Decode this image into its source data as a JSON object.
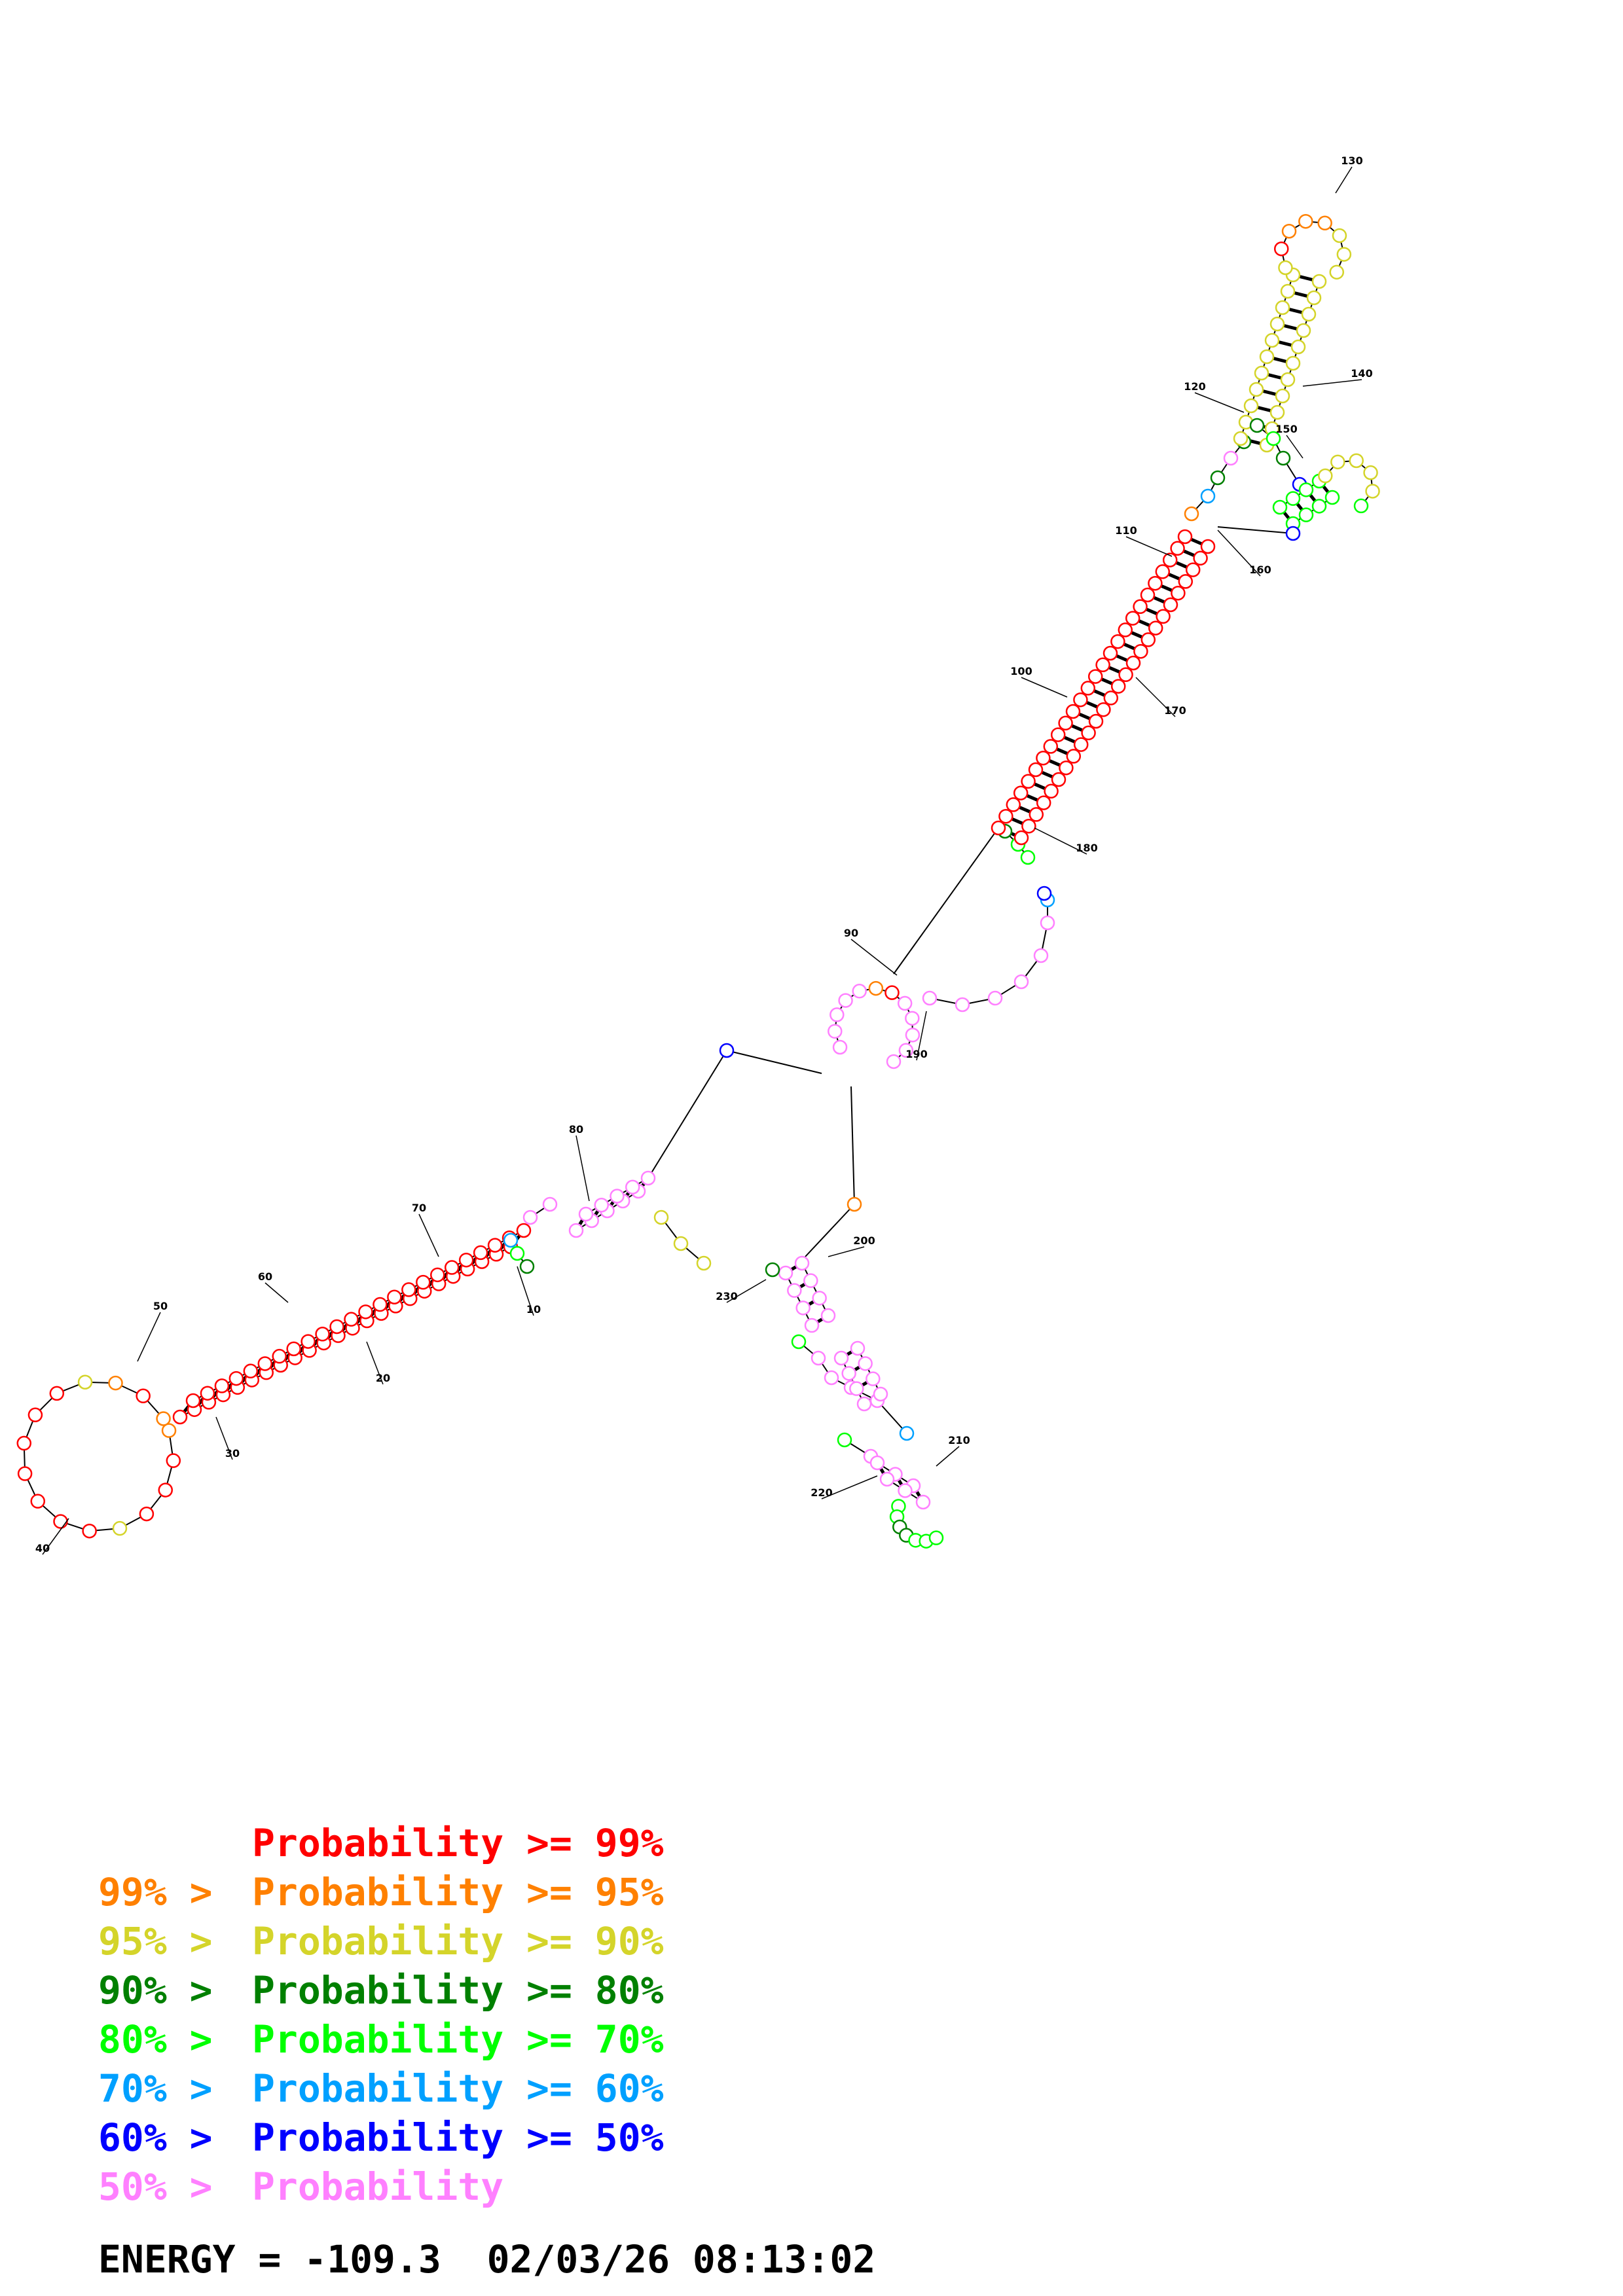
{
  "legend": [
    {
      "prefix": "",
      "label": "Probability >= 99%",
      "color": "#ff0000"
    },
    {
      "prefix": "99% > ",
      "label": "Probability >= 95%",
      "color": "#ff8000"
    },
    {
      "prefix": "95% > ",
      "label": "Probability >= 90%",
      "color": "#d4d42a"
    },
    {
      "prefix": "90% > ",
      "label": "Probability >= 80%",
      "color": "#008000"
    },
    {
      "prefix": "80% > ",
      "label": "Probability >= 70%",
      "color": "#00ff00"
    },
    {
      "prefix": "70% > ",
      "label": "Probability >= 60%",
      "color": "#00a0ff"
    },
    {
      "prefix": "60% > ",
      "label": "Probability >= 50%",
      "color": "#0000ff"
    },
    {
      "prefix": "50% > ",
      "label": "Probability",
      "color": "#ff80ff"
    }
  ],
  "energy_label": "ENERGY = ",
  "energy_value": "-109.3",
  "timestamp": "02/03/26 08:13:02",
  "index_labels": [
    "10",
    "20",
    "30",
    "40",
    "50",
    "60",
    "70",
    "80",
    "90",
    "100",
    "110",
    "120",
    "130",
    "140",
    "150",
    "160",
    "170",
    "180",
    "190",
    "200",
    "210",
    "220",
    "230"
  ]
}
